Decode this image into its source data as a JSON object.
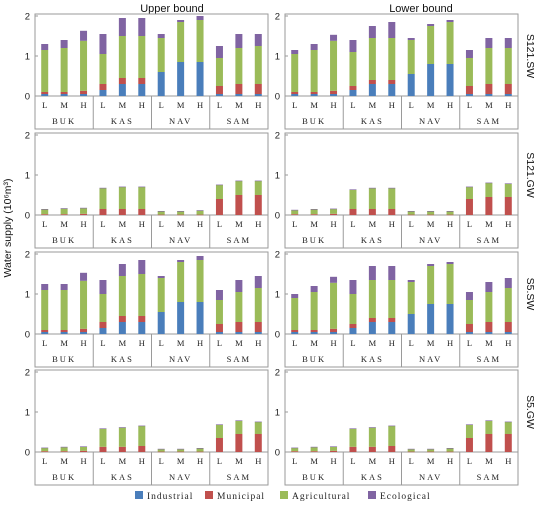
{
  "figure": {
    "ylabel": "Water supply (10⁶m³)",
    "columns": [
      "Upper bound",
      "Lower bound"
    ],
    "rows": [
      "S121.SW",
      "S121.GW",
      "S5.SW",
      "S5.GW"
    ],
    "groups": [
      "BUK",
      "KAS",
      "NAV",
      "SAM"
    ],
    "categories": [
      "L",
      "M",
      "H"
    ],
    "legend": [
      "Industrial",
      "Municipal",
      "Agricultural",
      "Ecological"
    ],
    "colors": {
      "Industrial": "#4a7ebb",
      "Municipal": "#c0504d",
      "Agricultural": "#9bbb59",
      "Ecological": "#8064a2"
    }
  },
  "chart_data": [
    {
      "type": "bar",
      "stacked": true,
      "row": "S121.SW",
      "column": "Upper bound",
      "ylim": [
        0,
        2
      ],
      "yticks": [
        0,
        1,
        2
      ],
      "grid": false,
      "categories": [
        "L",
        "M",
        "H",
        "L",
        "M",
        "H",
        "L",
        "M",
        "H",
        "L",
        "M",
        "H"
      ],
      "series": [
        {
          "name": "Industrial",
          "values": [
            0.05,
            0.05,
            0.05,
            0.15,
            0.3,
            0.3,
            0.6,
            0.85,
            0.85,
            0.05,
            0.05,
            0.05
          ]
        },
        {
          "name": "Municipal",
          "values": [
            0.05,
            0.05,
            0.08,
            0.15,
            0.15,
            0.15,
            0.0,
            0.0,
            0.0,
            0.2,
            0.25,
            0.25
          ]
        },
        {
          "name": "Agricultural",
          "values": [
            1.05,
            1.1,
            1.25,
            0.75,
            1.05,
            1.05,
            0.85,
            1.0,
            1.05,
            0.7,
            0.9,
            0.95
          ]
        },
        {
          "name": "Ecological",
          "values": [
            0.15,
            0.2,
            0.25,
            0.5,
            0.45,
            0.45,
            0.1,
            0.05,
            0.1,
            0.3,
            0.35,
            0.3
          ]
        }
      ]
    },
    {
      "type": "bar",
      "stacked": true,
      "row": "S121.SW",
      "column": "Lower bound",
      "ylim": [
        0,
        2
      ],
      "yticks": [
        0,
        1,
        2
      ],
      "grid": false,
      "categories": [
        "L",
        "M",
        "H",
        "L",
        "M",
        "H",
        "L",
        "M",
        "H",
        "L",
        "M",
        "H"
      ],
      "series": [
        {
          "name": "Industrial",
          "values": [
            0.05,
            0.05,
            0.05,
            0.15,
            0.3,
            0.3,
            0.55,
            0.8,
            0.8,
            0.05,
            0.05,
            0.05
          ]
        },
        {
          "name": "Municipal",
          "values": [
            0.05,
            0.05,
            0.08,
            0.1,
            0.1,
            0.1,
            0.0,
            0.0,
            0.0,
            0.2,
            0.25,
            0.25
          ]
        },
        {
          "name": "Agricultural",
          "values": [
            0.95,
            1.05,
            1.25,
            0.85,
            1.05,
            1.05,
            0.85,
            0.95,
            1.05,
            0.7,
            0.9,
            0.9
          ]
        },
        {
          "name": "Ecological",
          "values": [
            0.1,
            0.15,
            0.15,
            0.3,
            0.3,
            0.4,
            0.05,
            0.05,
            0.05,
            0.2,
            0.25,
            0.25
          ]
        }
      ]
    },
    {
      "type": "bar",
      "stacked": true,
      "row": "S121.GW",
      "column": "Upper bound",
      "ylim": [
        0,
        2
      ],
      "yticks": [
        0,
        1,
        2
      ],
      "grid": false,
      "categories": [
        "L",
        "M",
        "H",
        "L",
        "M",
        "H",
        "L",
        "M",
        "H",
        "L",
        "M",
        "H"
      ],
      "series": [
        {
          "name": "Industrial",
          "values": [
            0.0,
            0.0,
            0.0,
            0.0,
            0.0,
            0.0,
            0.0,
            0.0,
            0.0,
            0.0,
            0.0,
            0.0
          ]
        },
        {
          "name": "Municipal",
          "values": [
            0.02,
            0.02,
            0.03,
            0.15,
            0.15,
            0.15,
            0.01,
            0.01,
            0.01,
            0.4,
            0.5,
            0.5
          ]
        },
        {
          "name": "Agricultural",
          "values": [
            0.12,
            0.14,
            0.14,
            0.52,
            0.55,
            0.55,
            0.08,
            0.08,
            0.1,
            0.35,
            0.35,
            0.35
          ]
        },
        {
          "name": "Ecological",
          "values": [
            0.01,
            0.01,
            0.01,
            0.01,
            0.01,
            0.01,
            0.01,
            0.01,
            0.01,
            0.01,
            0.01,
            0.01
          ]
        }
      ]
    },
    {
      "type": "bar",
      "stacked": true,
      "row": "S121.GW",
      "column": "Lower bound",
      "ylim": [
        0,
        2
      ],
      "yticks": [
        0,
        1,
        2
      ],
      "grid": false,
      "categories": [
        "L",
        "M",
        "H",
        "L",
        "M",
        "H",
        "L",
        "M",
        "H",
        "L",
        "M",
        "H"
      ],
      "series": [
        {
          "name": "Industrial",
          "values": [
            0.0,
            0.0,
            0.0,
            0.0,
            0.0,
            0.0,
            0.0,
            0.0,
            0.0,
            0.0,
            0.0,
            0.0
          ]
        },
        {
          "name": "Municipal",
          "values": [
            0.02,
            0.02,
            0.03,
            0.15,
            0.15,
            0.15,
            0.01,
            0.01,
            0.01,
            0.4,
            0.45,
            0.45
          ]
        },
        {
          "name": "Agricultural",
          "values": [
            0.1,
            0.12,
            0.12,
            0.48,
            0.52,
            0.52,
            0.08,
            0.08,
            0.08,
            0.3,
            0.35,
            0.33
          ]
        },
        {
          "name": "Ecological",
          "values": [
            0.01,
            0.01,
            0.01,
            0.01,
            0.01,
            0.01,
            0.01,
            0.01,
            0.01,
            0.01,
            0.01,
            0.01
          ]
        }
      ]
    },
    {
      "type": "bar",
      "stacked": true,
      "row": "S5.SW",
      "column": "Upper bound",
      "ylim": [
        0,
        2
      ],
      "yticks": [
        0,
        1,
        2
      ],
      "grid": false,
      "categories": [
        "L",
        "M",
        "H",
        "L",
        "M",
        "H",
        "L",
        "M",
        "H",
        "L",
        "M",
        "H"
      ],
      "series": [
        {
          "name": "Industrial",
          "values": [
            0.05,
            0.05,
            0.05,
            0.15,
            0.3,
            0.3,
            0.55,
            0.8,
            0.8,
            0.05,
            0.05,
            0.05
          ]
        },
        {
          "name": "Municipal",
          "values": [
            0.05,
            0.05,
            0.08,
            0.15,
            0.15,
            0.15,
            0.0,
            0.0,
            0.0,
            0.2,
            0.25,
            0.25
          ]
        },
        {
          "name": "Agricultural",
          "values": [
            1.0,
            1.0,
            1.2,
            0.7,
            1.0,
            1.05,
            0.85,
            1.0,
            1.05,
            0.6,
            0.75,
            0.85
          ]
        },
        {
          "name": "Ecological",
          "values": [
            0.15,
            0.15,
            0.2,
            0.35,
            0.3,
            0.35,
            0.05,
            0.05,
            0.1,
            0.25,
            0.3,
            0.3
          ]
        }
      ]
    },
    {
      "type": "bar",
      "stacked": true,
      "row": "S5.SW",
      "column": "Lower bound",
      "ylim": [
        0,
        2
      ],
      "yticks": [
        0,
        1,
        2
      ],
      "grid": false,
      "categories": [
        "L",
        "M",
        "H",
        "L",
        "M",
        "H",
        "L",
        "M",
        "H",
        "L",
        "M",
        "H"
      ],
      "series": [
        {
          "name": "Industrial",
          "values": [
            0.05,
            0.05,
            0.05,
            0.15,
            0.3,
            0.3,
            0.5,
            0.75,
            0.75,
            0.05,
            0.05,
            0.05
          ]
        },
        {
          "name": "Municipal",
          "values": [
            0.05,
            0.05,
            0.08,
            0.1,
            0.1,
            0.1,
            0.0,
            0.0,
            0.0,
            0.2,
            0.25,
            0.25
          ]
        },
        {
          "name": "Agricultural",
          "values": [
            0.8,
            0.95,
            1.15,
            0.75,
            0.95,
            0.95,
            0.8,
            0.95,
            1.0,
            0.6,
            0.75,
            0.85
          ]
        },
        {
          "name": "Ecological",
          "values": [
            0.1,
            0.15,
            0.15,
            0.35,
            0.35,
            0.35,
            0.05,
            0.05,
            0.05,
            0.2,
            0.25,
            0.25
          ]
        }
      ]
    },
    {
      "type": "bar",
      "stacked": true,
      "row": "S5.GW",
      "column": "Upper bound",
      "ylim": [
        0,
        2
      ],
      "yticks": [
        0,
        1,
        2
      ],
      "grid": false,
      "categories": [
        "L",
        "M",
        "H",
        "L",
        "M",
        "H",
        "L",
        "M",
        "H",
        "L",
        "M",
        "H"
      ],
      "series": [
        {
          "name": "Industrial",
          "values": [
            0.0,
            0.0,
            0.0,
            0.0,
            0.0,
            0.0,
            0.0,
            0.0,
            0.0,
            0.0,
            0.0,
            0.0
          ]
        },
        {
          "name": "Municipal",
          "values": [
            0.02,
            0.02,
            0.03,
            0.13,
            0.13,
            0.15,
            0.01,
            0.01,
            0.01,
            0.35,
            0.45,
            0.45
          ]
        },
        {
          "name": "Agricultural",
          "values": [
            0.08,
            0.1,
            0.1,
            0.45,
            0.48,
            0.5,
            0.06,
            0.06,
            0.08,
            0.33,
            0.33,
            0.3
          ]
        },
        {
          "name": "Ecological",
          "values": [
            0.01,
            0.01,
            0.01,
            0.01,
            0.01,
            0.01,
            0.01,
            0.01,
            0.01,
            0.01,
            0.01,
            0.01
          ]
        }
      ]
    },
    {
      "type": "bar",
      "stacked": true,
      "row": "S5.GW",
      "column": "Lower bound",
      "ylim": [
        0,
        2
      ],
      "yticks": [
        0,
        1,
        2
      ],
      "grid": false,
      "categories": [
        "L",
        "M",
        "H",
        "L",
        "M",
        "H",
        "L",
        "M",
        "H",
        "L",
        "M",
        "H"
      ],
      "series": [
        {
          "name": "Industrial",
          "values": [
            0.0,
            0.0,
            0.0,
            0.0,
            0.0,
            0.0,
            0.0,
            0.0,
            0.0,
            0.0,
            0.0,
            0.0
          ]
        },
        {
          "name": "Municipal",
          "values": [
            0.02,
            0.02,
            0.03,
            0.13,
            0.13,
            0.15,
            0.01,
            0.01,
            0.01,
            0.35,
            0.45,
            0.45
          ]
        },
        {
          "name": "Agricultural",
          "values": [
            0.08,
            0.1,
            0.1,
            0.45,
            0.48,
            0.5,
            0.06,
            0.06,
            0.08,
            0.33,
            0.33,
            0.3
          ]
        },
        {
          "name": "Ecological",
          "values": [
            0.01,
            0.01,
            0.01,
            0.01,
            0.01,
            0.01,
            0.01,
            0.01,
            0.01,
            0.01,
            0.01,
            0.01
          ]
        }
      ]
    }
  ]
}
